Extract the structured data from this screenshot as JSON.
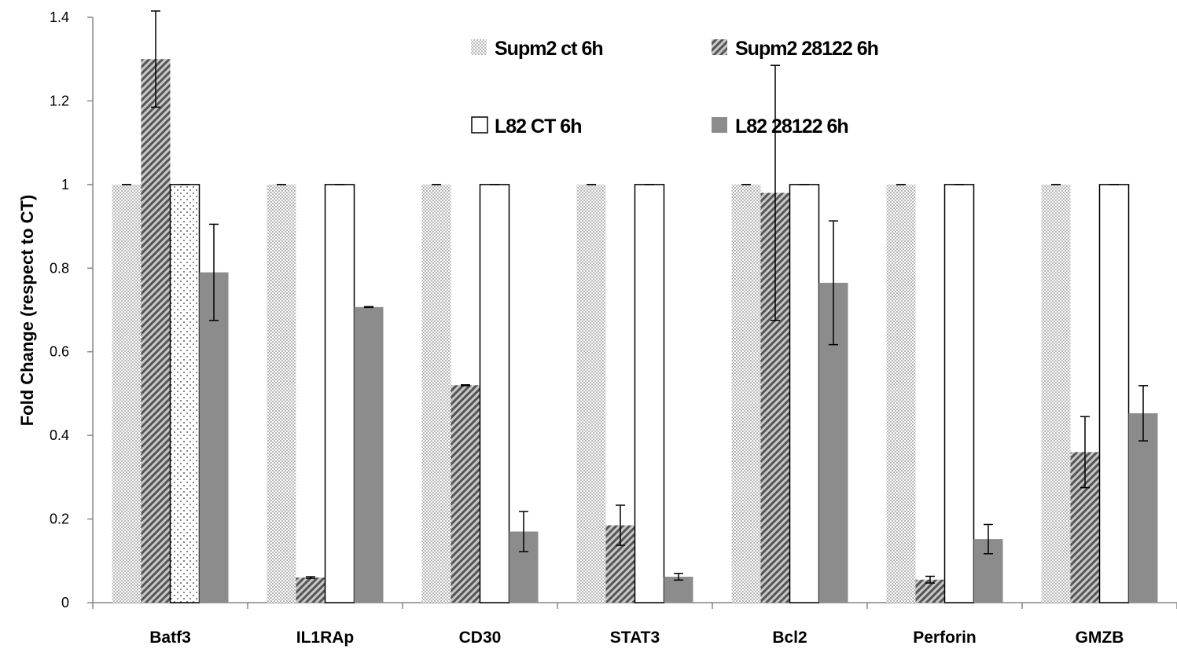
{
  "chart_data": {
    "type": "bar",
    "categories": [
      "Batf3",
      "IL1RAp",
      "CD30",
      "STAT3",
      "Bcl2",
      "Perforin",
      "GMZB"
    ],
    "series": [
      {
        "name": "Supm2 ct 6h",
        "pattern": "checker",
        "values": [
          1,
          1,
          1,
          1,
          1,
          1,
          1
        ],
        "errors": [
          0,
          0,
          0,
          0,
          0,
          0,
          0
        ]
      },
      {
        "name": "Supm2 28122 6h",
        "pattern": "diagonal",
        "values": [
          1.3,
          0.06,
          0.52,
          0.185,
          0.98,
          0.055,
          0.36
        ],
        "errors": [
          0.115,
          0.002,
          0.001,
          0.048,
          0.305,
          0.008,
          0.085
        ]
      },
      {
        "name": "L82 CT 6h",
        "pattern": "white",
        "values": [
          1,
          1,
          1,
          1,
          1,
          1,
          1
        ],
        "errors": [
          0,
          0,
          0,
          0,
          0,
          0,
          0
        ]
      },
      {
        "name": "L82 28122 6h",
        "pattern": "solid-gray",
        "values": [
          0.79,
          0.707,
          0.17,
          0.062,
          0.765,
          0.152,
          0.453
        ],
        "errors": [
          0.115,
          0.001,
          0.048,
          0.008,
          0.148,
          0.035,
          0.066
        ]
      }
    ],
    "highlight": {
      "category_index": 0,
      "series_index": 2,
      "pattern": "dotted"
    },
    "ylabel": "Fold Change (respect to CT)",
    "xlabel": "",
    "ylim": [
      0,
      1.4
    ],
    "yticks": [
      0,
      0.2,
      0.4,
      0.6,
      0.8,
      1,
      1.2,
      1.4
    ],
    "ytick_labels": [
      "0",
      "0.2",
      "0.4",
      "0.6",
      "0.8",
      "1",
      "1.2",
      "1.4"
    ],
    "grid": false,
    "legend_position": "top-center",
    "colors": {
      "bar_fill_gray": "#8c8c8c",
      "checker": "#b8b8b8",
      "hatch": "#555555",
      "axis": "#868686"
    }
  }
}
